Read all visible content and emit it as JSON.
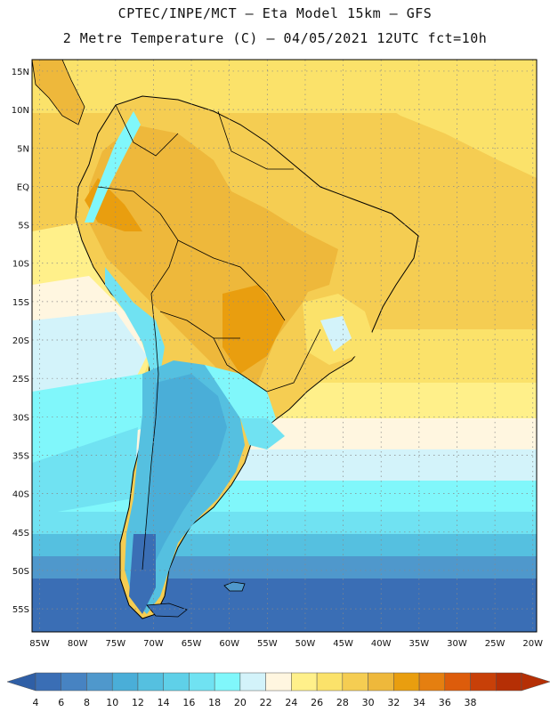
{
  "header": {
    "line1": "CPTEC/INPE/MCT –  Eta Model 15km – GFS",
    "line2": "2 Metre Temperature (C) – 04/05/2021 12UTC fct=10h"
  },
  "map": {
    "lat_labels": [
      "15N",
      "10N",
      "5N",
      "EQ",
      "5S",
      "10S",
      "15S",
      "20S",
      "25S",
      "30S",
      "35S",
      "40S",
      "45S",
      "50S",
      "55S"
    ],
    "lat_values": [
      15,
      10,
      5,
      0,
      -5,
      -10,
      -15,
      -20,
      -25,
      -30,
      -35,
      -40,
      -45,
      -50,
      -55
    ],
    "lon_labels": [
      "85W",
      "80W",
      "75W",
      "70W",
      "65W",
      "60W",
      "55W",
      "50W",
      "45W",
      "40W",
      "35W",
      "30W",
      "25W",
      "20W"
    ],
    "lon_values": [
      -85,
      -80,
      -75,
      -70,
      -65,
      -60,
      -55,
      -50,
      -45,
      -40,
      -35,
      -30,
      -25,
      -20
    ],
    "extent": {
      "lon_min": -86,
      "lon_max": -19.5,
      "lat_min": -58,
      "lat_max": 16.5
    }
  },
  "colorbar": {
    "labels": [
      "4",
      "6",
      "8",
      "10",
      "12",
      "14",
      "16",
      "18",
      "20",
      "22",
      "24",
      "26",
      "28",
      "30",
      "32",
      "34",
      "36",
      "38"
    ],
    "colors": [
      "#3a6eb5",
      "#4783c2",
      "#4f98cc",
      "#4aaed8",
      "#55c0e0",
      "#5fd0e8",
      "#70e2f2",
      "#80f7fb",
      "#d3f3fa",
      "#fff6e0",
      "#fff08a",
      "#fbe26a",
      "#f5cd52",
      "#eeb83b",
      "#e99e0f",
      "#e57f10",
      "#dd5c0b",
      "#c84008",
      "#b52f05"
    ],
    "left_arrow_color": "#2f5fa6",
    "right_arrow_color": "#b52f05"
  }
}
